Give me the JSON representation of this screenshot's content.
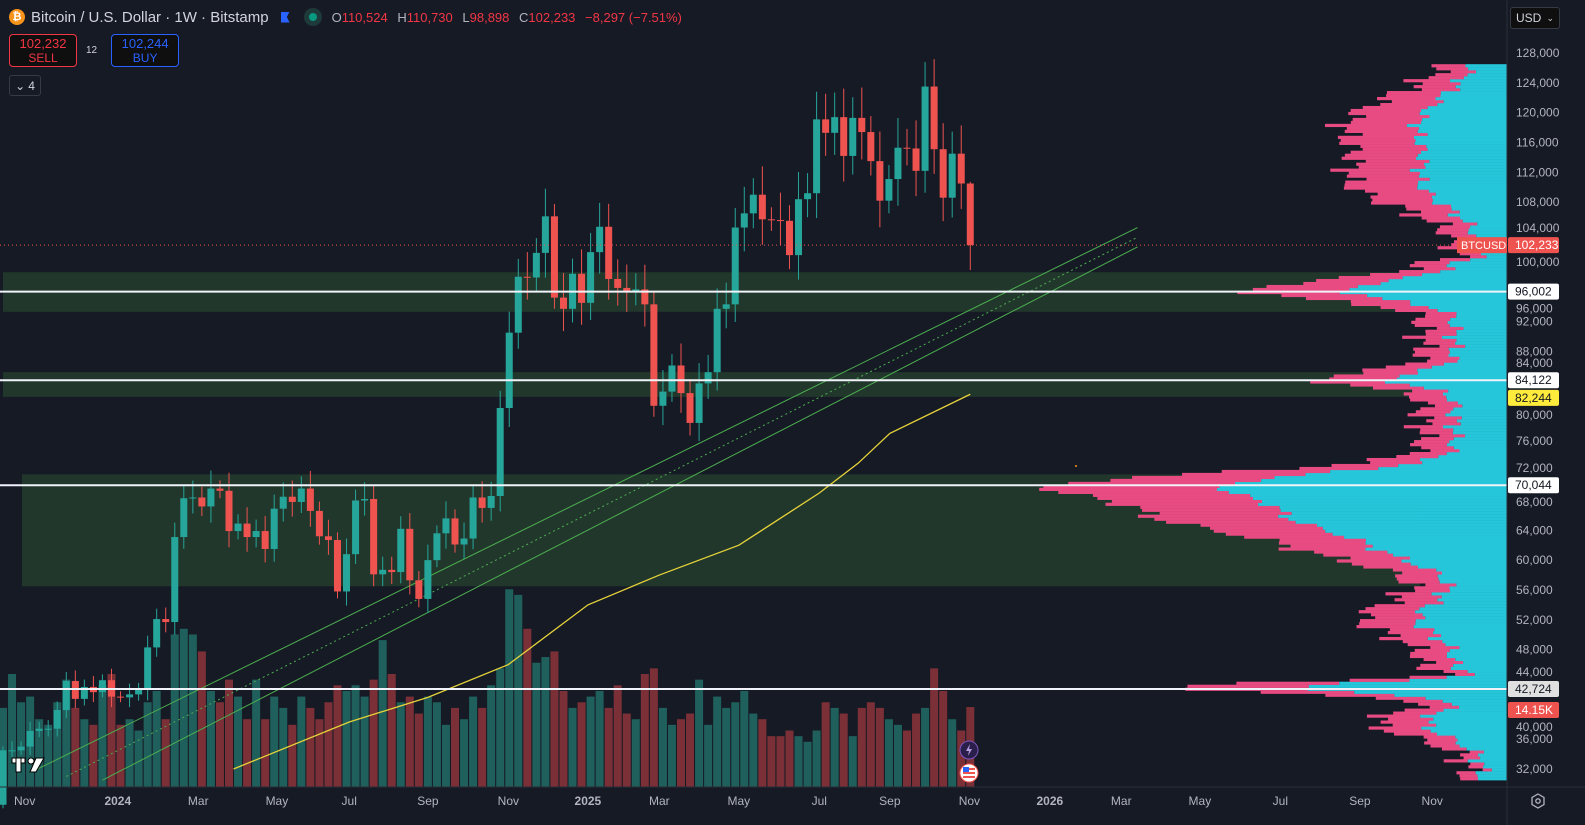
{
  "header": {
    "symbol_title": "Bitcoin / U.S. Dollar · 1W · Bitstamp",
    "coin_icon": "bitcoin-icon",
    "ohlc": {
      "o_label": "O",
      "o": "110,524",
      "h_label": "H",
      "h": "110,730",
      "l_label": "L",
      "l": "98,898",
      "c_label": "C",
      "c": "102,233",
      "change": "−8,297 (−7.51%)"
    }
  },
  "trade": {
    "sell_price": "102,232",
    "sell_label": "SELL",
    "spread": "12",
    "buy_price": "102,244",
    "buy_label": "BUY"
  },
  "indicators_toggle": {
    "count": "4"
  },
  "currency": {
    "label": "USD"
  },
  "colors": {
    "up": "#26a69a",
    "down": "#ef5350",
    "vol_up": "#1f5f5c",
    "vol_down": "#7a3036",
    "ma": "#e6d33a",
    "zone": "#243b2e",
    "profile_up": "#26c6da",
    "profile_down": "#e84a82",
    "bg": "#161a25"
  },
  "chart_data": {
    "type": "candlestick",
    "title": "Bitcoin / U.S. Dollar · 1W · Bitstamp",
    "ylabel": "USD",
    "ylim": [
      30000,
      130000
    ],
    "unit": "thousand USD",
    "first_week": "2023-10-16",
    "first_open": 27.2,
    "closes": [
      34.5,
      34.5,
      35.0,
      37.1,
      37.4,
      37.4,
      39.9,
      43.8,
      41.4,
      43.0,
      42.3,
      43.9,
      41.7,
      41.6,
      42.0,
      42.6,
      48.3,
      52.1,
      51.7,
      63.1,
      68.3,
      68.4,
      67.2,
      69.6,
      69.3,
      63.9,
      64.9,
      63.1,
      63.9,
      61.5,
      66.9,
      68.5,
      67.8,
      69.6,
      66.6,
      63.2,
      62.7,
      55.8,
      60.8,
      68.0,
      68.2,
      58.1,
      58.7,
      58.4,
      64.2,
      57.3,
      54.8,
      60.0,
      63.6,
      65.6,
      62.1,
      62.9,
      68.4,
      67.0,
      68.6,
      80.4,
      90.5,
      98.0,
      97.9,
      101.2,
      106.1,
      95.2,
      93.7,
      98.4,
      94.5,
      101.3,
      104.7,
      97.7,
      96.5,
      96.1,
      96.3,
      94.3,
      80.7,
      82.6,
      86.1,
      82.4,
      78.4,
      83.7,
      85.2,
      93.7,
      94.3,
      104.6,
      106.5,
      109.0,
      105.7,
      105.6,
      105.5,
      100.9,
      108.4,
      109.2,
      119.1,
      117.3,
      119.4,
      114.2,
      119.3,
      117.4,
      113.5,
      108.2,
      111.1,
      115.3,
      115.2,
      112.2,
      123.5,
      115.1,
      108.6,
      114.5,
      110.5,
      102.233
    ],
    "volumes_k": [
      14,
      20,
      15,
      16,
      12,
      11,
      15,
      19,
      14,
      12,
      11,
      18,
      20,
      11,
      12,
      10,
      15,
      17,
      12,
      27,
      28,
      27,
      24,
      17,
      15,
      19,
      16,
      12,
      19,
      12,
      16,
      14,
      11,
      16,
      14,
      12,
      15,
      18,
      17,
      18,
      16,
      19,
      26,
      20,
      15,
      16,
      13,
      16,
      15,
      11,
      14,
      12,
      16,
      14,
      18,
      21,
      35,
      34,
      28,
      22,
      23,
      24,
      17,
      14,
      15,
      16,
      17,
      14,
      18,
      13,
      12,
      20,
      21,
      14,
      11,
      12,
      13,
      19,
      11,
      16,
      14,
      15,
      17,
      13,
      12,
      9,
      9,
      10,
      9,
      8,
      10,
      15,
      14,
      13,
      9,
      14,
      15,
      14,
      12,
      11,
      10,
      13,
      14,
      21,
      17,
      12,
      10,
      14.15
    ],
    "ma_points": [
      {
        "date": "2024-04",
        "value": 32.0
      },
      {
        "date": "2024-07",
        "value": 38.3
      },
      {
        "date": "2024-09",
        "value": 41.6
      },
      {
        "date": "2024-11",
        "value": 46.0
      },
      {
        "date": "2025-01",
        "value": 54.0
      },
      {
        "date": "2025-03",
        "value": 58.0
      },
      {
        "date": "2025-05",
        "value": 62.0
      },
      {
        "date": "2025-07",
        "value": 69.0
      },
      {
        "date": "2025-08",
        "value": 73.0
      },
      {
        "date": "2025-09",
        "value": 77.0
      },
      {
        "date": "2025-11",
        "value": 82.244
      }
    ],
    "horizontal_levels": [
      "96,002",
      "84,122",
      "70,044",
      "42,724"
    ],
    "horizontal_level_values": [
      96.002,
      84.122,
      70.044,
      42.724
    ],
    "zones": [
      {
        "from": 93.3,
        "to": 98.6
      },
      {
        "from": 81.9,
        "to": 85.2
      },
      {
        "from": 56.5,
        "to": 71.5
      }
    ],
    "y_ticks": [
      "128,000",
      "124,000",
      "120,000",
      "116,000",
      "112,000",
      "108,000",
      "104,000",
      "100,000",
      "96,000",
      "92,000",
      "88,000",
      "84,000",
      "80,000",
      "76,000",
      "72,000",
      "68,000",
      "64,000",
      "60,000",
      "56,000",
      "52,000",
      "48,000",
      "44,000",
      "40,000",
      "36,000",
      "32,000"
    ],
    "x_ticks": [
      {
        "label": "Nov",
        "week": 2.4
      },
      {
        "label": "2024",
        "week": 12.7
      },
      {
        "label": "Mar",
        "week": 21.6
      },
      {
        "label": "May",
        "week": 30.3
      },
      {
        "label": "Jul",
        "week": 38.3
      },
      {
        "label": "Sep",
        "week": 47.0
      },
      {
        "label": "Nov",
        "week": 55.9
      },
      {
        "label": "2025",
        "week": 64.7
      },
      {
        "label": "Mar",
        "week": 72.6
      },
      {
        "label": "May",
        "week": 81.4
      },
      {
        "label": "Jul",
        "week": 90.3
      },
      {
        "label": "Sep",
        "week": 98.1
      },
      {
        "label": "Nov",
        "week": 106.9
      },
      {
        "label": "2026",
        "week": 115.8
      },
      {
        "label": "Mar",
        "week": 123.7
      },
      {
        "label": "May",
        "week": 132.4
      },
      {
        "label": "Jul",
        "week": 141.3
      },
      {
        "label": "Sep",
        "week": 150.1
      },
      {
        "label": "Nov",
        "week": 158.1
      }
    ],
    "price_labels": {
      "symbol": "BTCUSD",
      "last": "102,233",
      "ma": "82,244",
      "volume": "14.15K"
    }
  }
}
